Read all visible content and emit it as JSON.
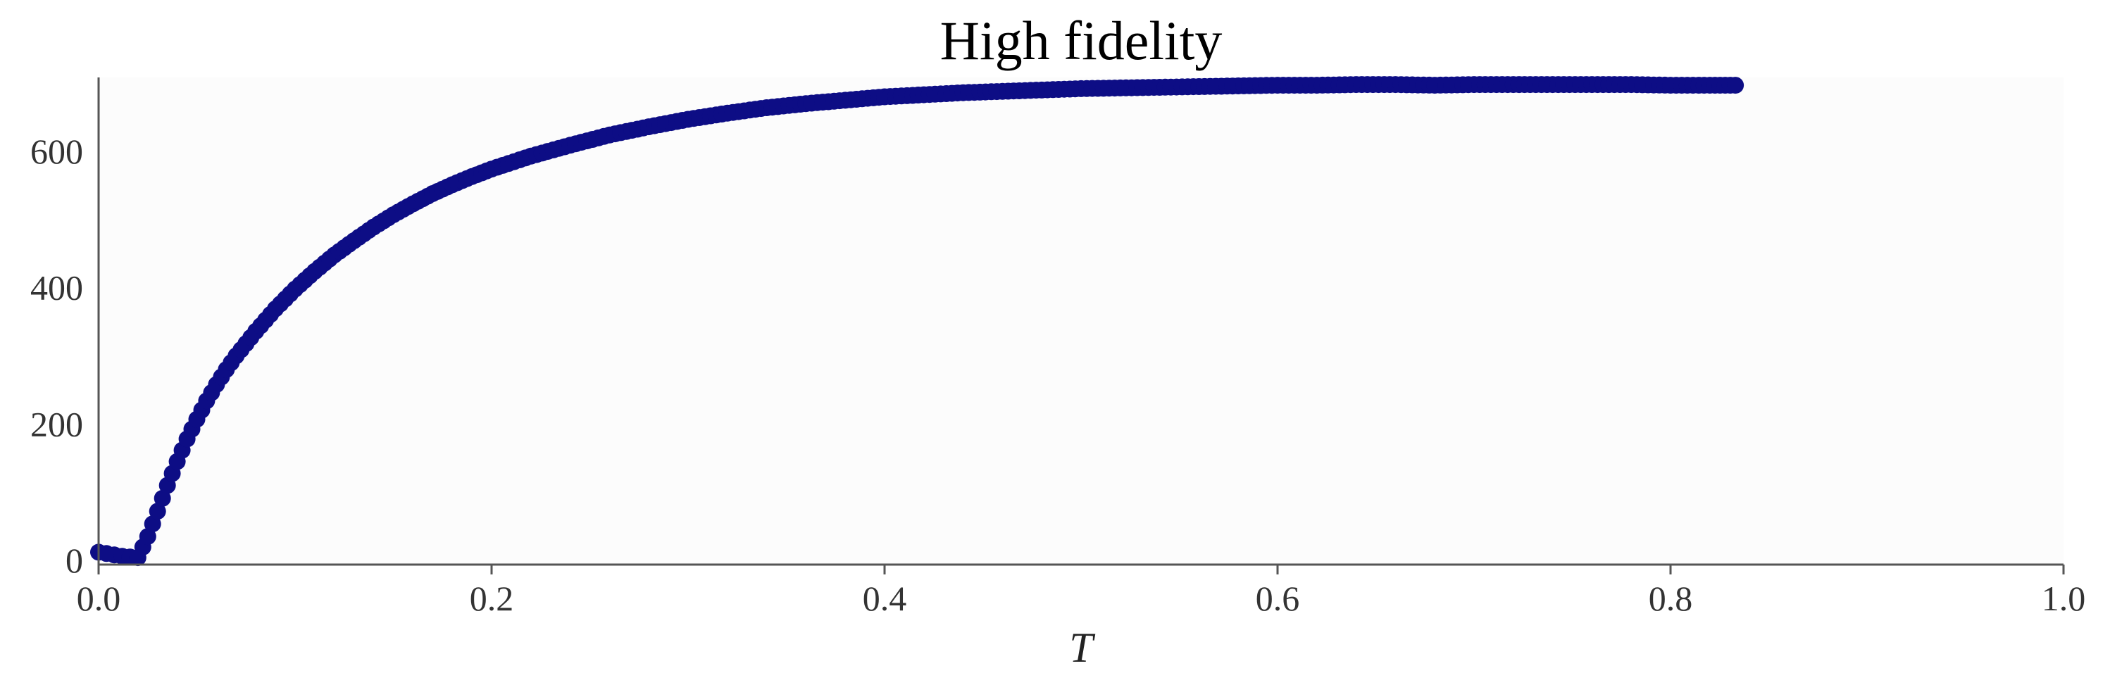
{
  "chart_data": {
    "type": "scatter",
    "title": "High fidelity",
    "xlabel": "T",
    "ylabel": "",
    "xlim": [
      0.0,
      1.0
    ],
    "ylim": [
      0,
      710
    ],
    "x_ticks": [
      0.0,
      0.2,
      0.4,
      0.6,
      0.8,
      1.0
    ],
    "x_tick_labels": [
      "0.0",
      "0.2",
      "0.4",
      "0.6",
      "0.8",
      "1.0"
    ],
    "y_ticks": [
      0,
      200,
      400,
      600
    ],
    "y_tick_labels": [
      "0",
      "200",
      "400",
      "600"
    ],
    "grid": false,
    "colors": {
      "marker": "#0d0d85",
      "plot_background": "#fcfcfc",
      "axis": "#555555"
    },
    "series": [
      {
        "x": [
          0.0,
          0.004,
          0.008,
          0.012,
          0.016,
          0.02,
          0.025,
          0.03,
          0.035,
          0.04,
          0.045,
          0.05,
          0.055,
          0.06,
          0.065,
          0.07,
          0.08,
          0.09,
          0.1,
          0.11,
          0.12,
          0.13,
          0.14,
          0.15,
          0.16,
          0.17,
          0.18,
          0.19,
          0.2,
          0.22,
          0.24,
          0.26,
          0.28,
          0.3,
          0.32,
          0.34,
          0.36,
          0.38,
          0.4,
          0.42,
          0.44,
          0.46,
          0.48,
          0.5,
          0.52,
          0.54,
          0.56,
          0.58,
          0.6,
          0.62,
          0.64,
          0.66,
          0.68,
          0.7,
          0.72,
          0.74,
          0.76,
          0.78,
          0.8,
          0.82,
          0.833
        ],
        "y": [
          12,
          10,
          8,
          6,
          5,
          4,
          35,
          72,
          110,
          145,
          178,
          207,
          234,
          258,
          280,
          300,
          336,
          369,
          398,
          424,
          448,
          469,
          489,
          507,
          523,
          538,
          551,
          563,
          574,
          593,
          609,
          624,
          636,
          647,
          656,
          664,
          670,
          675,
          680,
          683,
          686,
          688,
          690,
          692,
          693,
          694,
          695,
          696,
          697,
          697,
          698,
          698,
          697,
          698,
          698,
          698,
          698,
          698,
          697,
          697,
          697
        ]
      }
    ]
  }
}
